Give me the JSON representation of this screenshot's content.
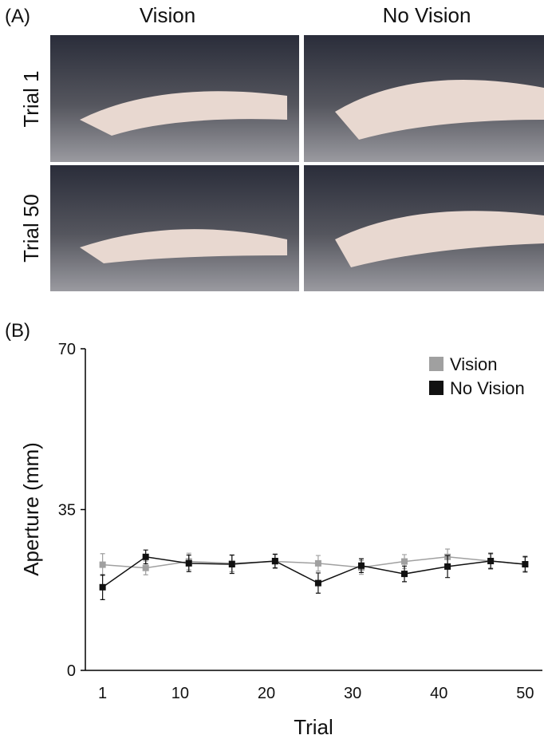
{
  "panel_a": {
    "label": "(A)",
    "columns": [
      "Vision",
      "No Vision"
    ],
    "rows": [
      "Trial 1",
      "Trial 50"
    ]
  },
  "chart_data": {
    "type": "line",
    "panel_label": "(B)",
    "x_label": "Trial",
    "y_label": "Aperture (mm)",
    "x": [
      1,
      6,
      11,
      16,
      21,
      26,
      31,
      36,
      41,
      46,
      50
    ],
    "series": [
      {
        "name": "Vision",
        "color": "#a0a0a0",
        "values": [
          23.0,
          22.3,
          23.7,
          23.3,
          23.7,
          23.3,
          22.4,
          23.7,
          24.7,
          23.8,
          23.1
        ],
        "errors": [
          2.4,
          1.5,
          1.8,
          1.8,
          1.5,
          1.7,
          1.5,
          1.5,
          1.7,
          1.5,
          1.5
        ]
      },
      {
        "name": "No Vision",
        "color": "#111111",
        "values": [
          18.1,
          24.7,
          23.3,
          23.1,
          23.8,
          19.0,
          22.8,
          21.0,
          22.6,
          23.8,
          23.1
        ],
        "errors": [
          2.7,
          1.5,
          1.8,
          2.0,
          1.5,
          2.2,
          1.5,
          1.7,
          2.4,
          1.7,
          1.7
        ]
      }
    ],
    "xlim": [
      -1,
      52
    ],
    "xticks": [
      1,
      10,
      20,
      30,
      40,
      50
    ],
    "ylim": [
      0,
      70
    ],
    "yticks": [
      0,
      35,
      70
    ],
    "legend": "upper right"
  }
}
